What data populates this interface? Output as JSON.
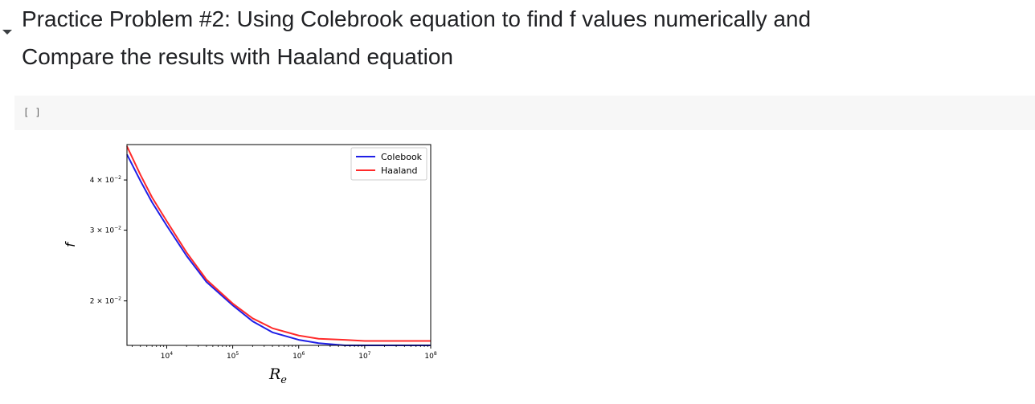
{
  "notebook": {
    "heading_line1": "Practice Problem #2: Using Colebrook equation to find f values numerically and",
    "heading_line2": "Compare the results with Haaland equation",
    "cell_run_indicator": "[ ]"
  },
  "chart_data": {
    "type": "line",
    "title": "",
    "xlabel": "R",
    "xlabel_sub": "e",
    "ylabel": "f",
    "x_scale": "log",
    "y_scale": "log",
    "xlim": [
      2500,
      100000000
    ],
    "ylim": [
      0.0155,
      0.049
    ],
    "grid": false,
    "legend_position": "top-right",
    "x_ticks": [
      {
        "value": 10000,
        "base": "10",
        "exp": "4"
      },
      {
        "value": 100000,
        "base": "10",
        "exp": "5"
      },
      {
        "value": 1000000,
        "base": "10",
        "exp": "6"
      },
      {
        "value": 10000000,
        "base": "10",
        "exp": "7"
      },
      {
        "value": 100000000,
        "base": "10",
        "exp": "8"
      }
    ],
    "y_ticks": [
      {
        "value": 0.02,
        "mant": "2",
        "base": "10",
        "exp": "−2"
      },
      {
        "value": 0.03,
        "mant": "3",
        "base": "10",
        "exp": "−2"
      },
      {
        "value": 0.04,
        "mant": "4",
        "base": "10",
        "exp": "−2"
      }
    ],
    "series": [
      {
        "name": "Colebook",
        "color": "#1f1fe6",
        "x": [
          2500,
          4000,
          6000,
          10000,
          20000,
          40000,
          100000,
          200000,
          400000,
          1000000,
          2000000,
          5000000,
          10000000,
          30000000,
          100000000
        ],
        "y": [
          0.0463,
          0.0398,
          0.0352,
          0.0308,
          0.0259,
          0.0223,
          0.0195,
          0.0178,
          0.0167,
          0.016,
          0.0157,
          0.0155,
          0.0155,
          0.0155,
          0.0155
        ]
      },
      {
        "name": "Haaland",
        "color": "#ff2a2a",
        "x": [
          2500,
          4000,
          6000,
          10000,
          20000,
          40000,
          100000,
          200000,
          400000,
          1000000,
          2000000,
          5000000,
          10000000,
          30000000,
          100000000
        ],
        "y": [
          0.0485,
          0.0412,
          0.0362,
          0.0316,
          0.0264,
          0.0226,
          0.0197,
          0.0181,
          0.0171,
          0.0164,
          0.0161,
          0.016,
          0.0159,
          0.0159,
          0.0159
        ]
      }
    ]
  }
}
